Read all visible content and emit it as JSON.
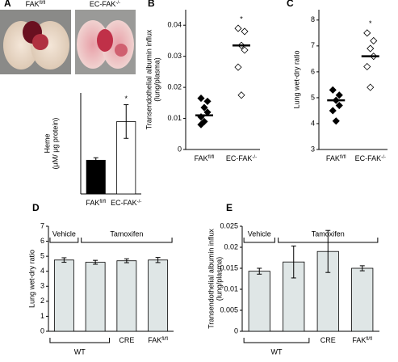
{
  "chart_data": [
    {
      "type": "bar",
      "panel": "A",
      "photo_labels": [
        {
          "text": "FAK",
          "sup": "fl/fl"
        },
        {
          "text": "EC-FAK",
          "sup": "-/-"
        }
      ],
      "ylabel": [
        "Heme",
        "(μM/ μg protein)"
      ],
      "categories": [
        {
          "text": "FAK",
          "sup": "fl/fl"
        },
        {
          "text": "EC-FAK",
          "sup": "-/-"
        }
      ],
      "values": [
        0.2,
        0.43
      ],
      "errors": [
        0.015,
        0.1
      ],
      "colors": [
        "#000000",
        "#ffffff"
      ],
      "ylim": [
        0,
        0.6
      ],
      "annotations": [
        {
          "text": "*",
          "index": 1
        }
      ]
    },
    {
      "type": "strip",
      "panel": "B",
      "ylabel": [
        "Transendothelial albumin influx",
        "(lung/plasma)"
      ],
      "categories": [
        {
          "text": "FAK",
          "sup": "fl/fl"
        },
        {
          "text": "EC-FAK",
          "sup": "-/-"
        }
      ],
      "points": [
        [
          0.0165,
          0.0155,
          0.0135,
          0.012,
          0.0105,
          0.009,
          0.008
        ],
        [
          0.039,
          0.038,
          0.0335,
          0.032,
          0.0265,
          0.0175
        ]
      ],
      "means": [
        0.011,
        0.0335
      ],
      "colors": [
        "#000000",
        "#ffffff"
      ],
      "ylim": [
        0,
        0.045
      ],
      "yticks": [
        0,
        0.01,
        0.02,
        0.03,
        0.04
      ],
      "annotations": [
        {
          "text": "*",
          "index": 1
        }
      ]
    },
    {
      "type": "strip",
      "panel": "C",
      "ylabel": [
        "Lung wet-dry ratio"
      ],
      "categories": [
        {
          "text": "FAK",
          "sup": "fl/fl"
        },
        {
          "text": "EC-FAK",
          "sup": "-/-"
        }
      ],
      "points": [
        [
          5.3,
          5.1,
          4.9,
          4.7,
          4.5,
          4.1
        ],
        [
          7.5,
          7.2,
          6.9,
          6.6,
          6.2,
          5.4
        ]
      ],
      "means": [
        4.9,
        6.6
      ],
      "colors": [
        "#000000",
        "#ffffff"
      ],
      "ylim": [
        3,
        8.4
      ],
      "yticks": [
        3,
        4,
        5,
        6,
        7,
        8
      ],
      "annotations": [
        {
          "text": "*",
          "index": 1
        }
      ]
    },
    {
      "type": "bar",
      "panel": "D",
      "ylabel": [
        "Lung wet-dry ratio"
      ],
      "categories": [
        null,
        null,
        {
          "text": "CRE"
        },
        {
          "text": "FAK",
          "sup": "fl/fl"
        }
      ],
      "groups": [
        {
          "label": "WT",
          "from": 0,
          "to": 1
        }
      ],
      "treatments": [
        {
          "label": "Vehicle",
          "from": 0,
          "to": 0
        },
        {
          "label": "Tamoxifen",
          "from": 1,
          "to": 3
        }
      ],
      "values": [
        4.75,
        4.6,
        4.7,
        4.75
      ],
      "errors": [
        0.15,
        0.13,
        0.13,
        0.17
      ],
      "color": "#dfe6e6",
      "ylim": [
        0,
        7
      ],
      "yticks": [
        0,
        1,
        2,
        3,
        4,
        5,
        6,
        7
      ]
    },
    {
      "type": "bar",
      "panel": "E",
      "ylabel": [
        "Transendothelial  albumin influx",
        "(lung/plasma)"
      ],
      "categories": [
        null,
        null,
        {
          "text": "CRE"
        },
        {
          "text": "FAK",
          "sup": "fl/fl"
        }
      ],
      "groups": [
        {
          "label": "WT",
          "from": 0,
          "to": 1
        }
      ],
      "treatments": [
        {
          "label": "Vehicle",
          "from": 0,
          "to": 0
        },
        {
          "label": "Tamoxifen",
          "from": 1,
          "to": 3
        }
      ],
      "values": [
        0.0143,
        0.0165,
        0.019,
        0.015
      ],
      "errors": [
        0.0007,
        0.0038,
        0.005,
        0.0006
      ],
      "color": "#dfe6e6",
      "ylim": [
        0,
        0.025
      ],
      "yticks": [
        0,
        0.005,
        0.01,
        0.015,
        0.02,
        0.025
      ]
    }
  ]
}
